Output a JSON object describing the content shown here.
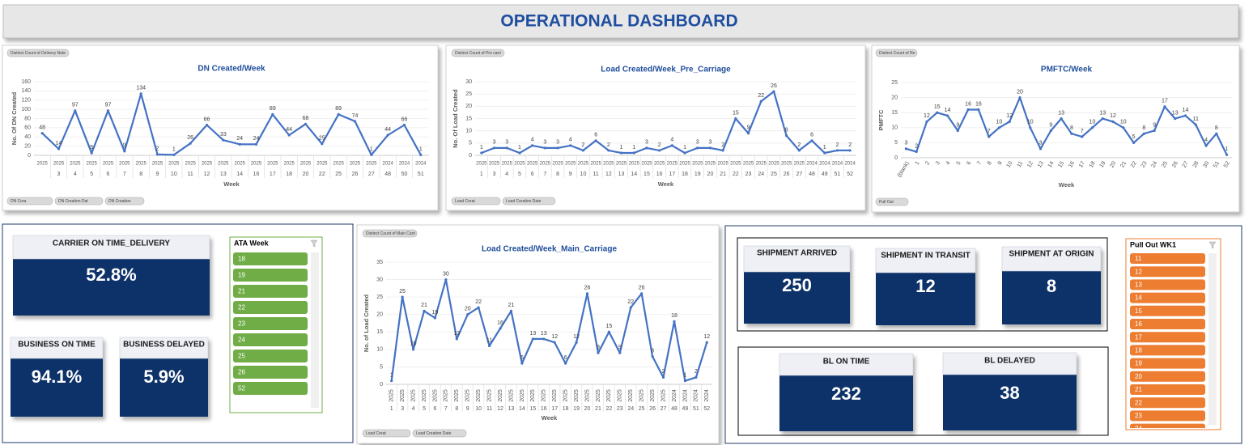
{
  "title": "OPERATIONAL DASHBOARD",
  "chart_data": [
    {
      "type": "line",
      "title": "DN Created/Week",
      "x_label": "Week",
      "y_label": "No. Of DN Created",
      "categories": [
        null,
        3,
        4,
        5,
        6,
        7,
        8,
        9,
        10,
        11,
        12,
        13,
        14,
        16,
        17,
        18,
        20,
        22,
        25,
        26,
        27,
        48,
        50,
        51
      ],
      "category_groups": [
        2025,
        2025,
        2025,
        2025,
        2025,
        2025,
        2025,
        2025,
        2025,
        2025,
        2025,
        2025,
        2025,
        2025,
        2025,
        2025,
        2025,
        2025,
        2025,
        2025,
        2025,
        2024,
        2024,
        2024
      ],
      "values": [
        48,
        14,
        97,
        5,
        97,
        9,
        134,
        2,
        1,
        26,
        66,
        33,
        24,
        24,
        89,
        44,
        68,
        25,
        89,
        74,
        1,
        44,
        66,
        1
      ],
      "color": "#4472c4",
      "ylim": [
        0,
        160
      ],
      "yticks": [
        0,
        20,
        40,
        60,
        80,
        100,
        120,
        140,
        160
      ],
      "grid": true,
      "top_buttons": [
        "Distinct Count of Delivery Note"
      ],
      "bottom_buttons": [
        "DN Crea",
        "DN Creation Dat",
        "DN Creation"
      ]
    },
    {
      "type": "line",
      "title": "Load Created/Week_Pre_Carriage",
      "x_label": "Week",
      "y_label": "No. Of Load Created",
      "categories": [
        1,
        3,
        4,
        5,
        6,
        7,
        8,
        9,
        10,
        11,
        12,
        13,
        14,
        15,
        16,
        17,
        18,
        19,
        20,
        21,
        22,
        23,
        24,
        25,
        26,
        27,
        48,
        49,
        51,
        52
      ],
      "category_groups": [
        2025,
        2025,
        2025,
        2025,
        2025,
        2025,
        2025,
        2025,
        2025,
        2025,
        2025,
        2025,
        2025,
        2025,
        2025,
        2025,
        2025,
        2025,
        2025,
        2025,
        2025,
        2025,
        2025,
        2025,
        2025,
        2025,
        2024,
        2024,
        2024,
        2024
      ],
      "values": [
        1,
        3,
        3,
        1,
        4,
        3,
        3,
        4,
        2,
        6,
        2,
        1,
        1,
        3,
        2,
        4,
        1,
        3,
        3,
        2,
        15,
        9,
        22,
        26,
        8,
        2,
        6,
        1,
        2,
        2
      ],
      "color": "#4472c4",
      "ylim": [
        0,
        30
      ],
      "yticks": [
        0,
        5,
        10,
        15,
        20,
        25,
        30
      ],
      "grid": true,
      "top_buttons": [
        "Distinct Count of Pre carri"
      ],
      "bottom_buttons": [
        "Load Creat",
        "Load Creation Date"
      ]
    },
    {
      "type": "line",
      "title": "PMFTC/Week",
      "x_label": "Week",
      "y_label": "PMFTC",
      "categories": [
        "(blank)",
        1,
        2,
        3,
        4,
        5,
        6,
        7,
        8,
        9,
        10,
        11,
        12,
        13,
        14,
        15,
        16,
        17,
        18,
        19,
        20,
        21,
        22,
        23,
        24,
        25,
        26,
        27,
        28,
        30,
        51,
        52
      ],
      "values": [
        3,
        2,
        12,
        15,
        14,
        9,
        16,
        16,
        7,
        10,
        12,
        20,
        10,
        3,
        9,
        13,
        8,
        7,
        10,
        13,
        12,
        10,
        5,
        8,
        9,
        17,
        13,
        14,
        11,
        4,
        8,
        1
      ],
      "color": "#4472c4",
      "ylim": [
        0,
        25
      ],
      "yticks": [
        0,
        5,
        10,
        15,
        20,
        25
      ],
      "grid": true,
      "top_buttons": [
        "Distinct Count of Re"
      ],
      "bottom_buttons": [
        "Pull Out"
      ]
    },
    {
      "type": "line",
      "title": "Load Created/Week_Main_Carriage",
      "x_label": "Week",
      "y_label": "No. of Load Created",
      "categories": [
        1,
        3,
        4,
        5,
        6,
        7,
        8,
        9,
        10,
        11,
        12,
        13,
        14,
        15,
        16,
        17,
        18,
        19,
        20,
        21,
        22,
        23,
        24,
        25,
        26,
        27,
        48,
        49,
        51,
        52
      ],
      "category_groups": [
        2025,
        2025,
        2025,
        2025,
        2025,
        2025,
        2025,
        2025,
        2025,
        2025,
        2025,
        2025,
        2025,
        2025,
        2025,
        2025,
        2025,
        2025,
        2025,
        2025,
        2025,
        2025,
        2025,
        2025,
        2025,
        2025,
        2024,
        2024,
        2024,
        2024
      ],
      "values": [
        1,
        25,
        10,
        21,
        19,
        30,
        13,
        20,
        22,
        11,
        16,
        21,
        6,
        13,
        13,
        12,
        6,
        12,
        26,
        9,
        15,
        9,
        22,
        26,
        8,
        2,
        18,
        1,
        2,
        12
      ],
      "color": "#4472c4",
      "ylim": [
        0,
        35
      ],
      "yticks": [
        0,
        5,
        10,
        15,
        20,
        25,
        30,
        35
      ],
      "grid": true,
      "top_buttons": [
        "Distinct Count of Main Carri"
      ],
      "bottom_buttons": [
        "Load Creat",
        "Load Creation Date"
      ]
    }
  ],
  "kpis": [
    {
      "label": "CARRIER ON TIME_DELIVERY",
      "value": "52.8%"
    },
    {
      "label": "BUSINESS ON TIME",
      "value": "94.1%"
    },
    {
      "label": "BUSINESS DELAYED",
      "value": "5.9%"
    },
    {
      "label": "SHIPMENT ARRIVED",
      "value": "250"
    },
    {
      "label": "SHIPMENT IN TRANSIT",
      "value": "12"
    },
    {
      "label": "SHIPMENT AT ORIGIN",
      "value": "8"
    },
    {
      "label": "BL ON TIME",
      "value": "232"
    },
    {
      "label": "BL DELAYED",
      "value": "38"
    }
  ],
  "slicers": [
    {
      "title": "ATA Week",
      "color": "#70ad47",
      "items": [
        18,
        19,
        21,
        22,
        23,
        24,
        25,
        26,
        52
      ]
    },
    {
      "title": "Pull Out WK1",
      "color": "#ed7d31",
      "items": [
        11,
        12,
        13,
        14,
        15,
        16,
        17,
        18,
        19,
        20,
        21,
        22,
        23,
        24
      ]
    }
  ]
}
